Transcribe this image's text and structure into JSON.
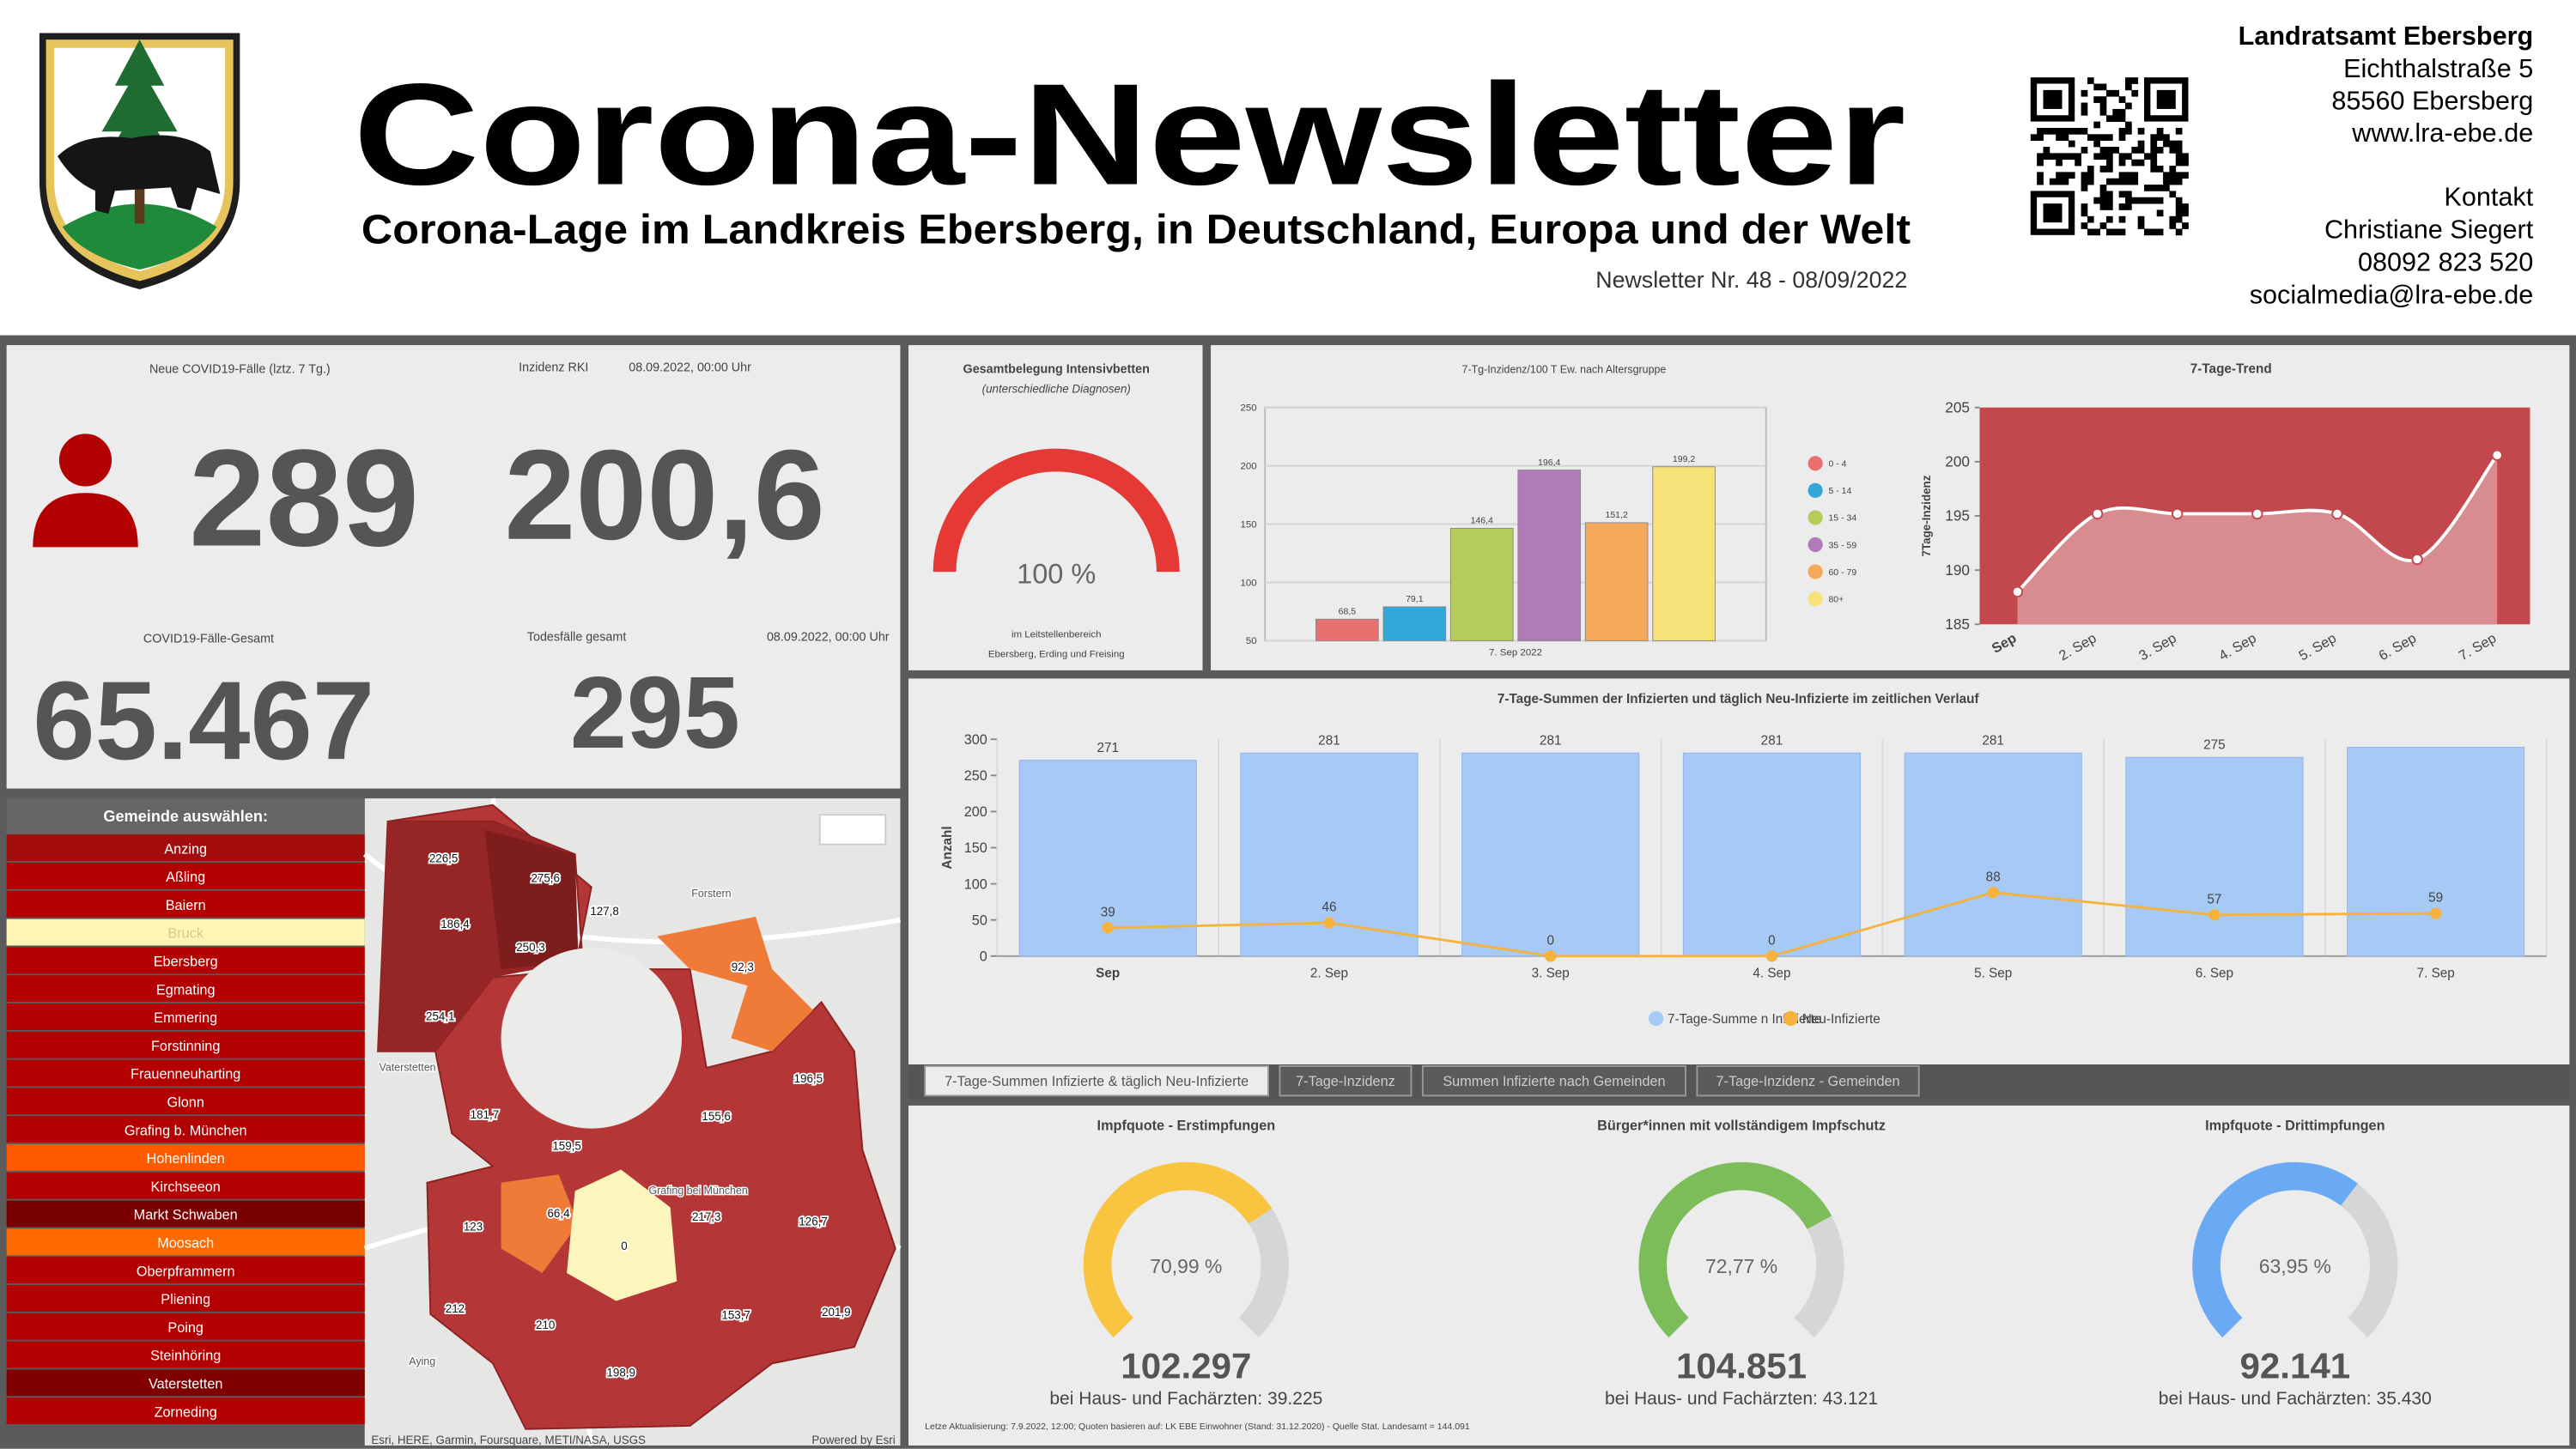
{
  "header": {
    "title": "Corona-Newsletter",
    "subtitle": "Corona-Lage im Landkreis Ebersberg, in Deutschland, Europa und der Welt",
    "issue": "Newsletter Nr. 48 - 08/09/2022"
  },
  "contact": {
    "office": "Landratsamt Ebersberg",
    "lines": [
      "Eichthalstraße 5",
      "85560 Ebersberg",
      "www.lra-ebe.de"
    ],
    "heading": "Kontakt",
    "contact_lines": [
      "Christiane Siegert",
      "08092 823 520",
      "socialmedia@lra-ebe.de"
    ]
  },
  "stats": {
    "new_cases": {
      "label": "Neue COVID19-Fälle (lztz. 7 Tg.)",
      "value": "289"
    },
    "incidence": {
      "label": "Inzidenz RKI",
      "date": "08.09.2022, 00:00 Uhr",
      "value": "200,6"
    },
    "total_cases": {
      "label": "COVID19-Fälle-Gesamt",
      "value": "65.467"
    },
    "deaths": {
      "label": "Todesfälle gesamt",
      "date": "08.09.2022, 00:00 Uhr",
      "value": "295"
    }
  },
  "municipalities": {
    "heading": "Gemeinde auswählen:",
    "items": [
      {
        "name": "Anzing",
        "color": "#a30d0d"
      },
      {
        "name": "Aßling",
        "color": "#b30000"
      },
      {
        "name": "Baiern",
        "color": "#b30000"
      },
      {
        "name": "Bruck",
        "color": "#fff5b5"
      },
      {
        "name": "Ebersberg",
        "color": "#b30000"
      },
      {
        "name": "Egmating",
        "color": "#b30000"
      },
      {
        "name": "Emmering",
        "color": "#b30000"
      },
      {
        "name": "Forstinning",
        "color": "#b30000"
      },
      {
        "name": "Frauenneuharting",
        "color": "#b30000"
      },
      {
        "name": "Glonn",
        "color": "#b30000"
      },
      {
        "name": "Grafing b. München",
        "color": "#b30000"
      },
      {
        "name": "Hohenlinden",
        "color": "#ff5a00"
      },
      {
        "name": "Kirchseeon",
        "color": "#b30000"
      },
      {
        "name": "Markt Schwaben",
        "color": "#7a0000"
      },
      {
        "name": "Moosach",
        "color": "#ff6a00"
      },
      {
        "name": "Oberpframmern",
        "color": "#b30000"
      },
      {
        "name": "Pliening",
        "color": "#b30000"
      },
      {
        "name": "Poing",
        "color": "#b30000"
      },
      {
        "name": "Steinhöring",
        "color": "#b30000"
      },
      {
        "name": "Vaterstetten",
        "color": "#800000"
      },
      {
        "name": "Zorneding",
        "color": "#b30000"
      }
    ]
  },
  "map": {
    "labels": [
      "226,5",
      "275,6",
      "186,4",
      "250,3",
      "127,8",
      "92,3",
      "254,1",
      "196,5",
      "181,7",
      "155,6",
      "159,5",
      "66,4",
      "0",
      "217,3",
      "123",
      "126,7",
      "212",
      "210",
      "153,7",
      "201,9",
      "198,9"
    ],
    "places": [
      "Forstern",
      "Vaterstetten",
      "Aying",
      "Grafing bei München"
    ],
    "attribution": "Esri, HERE, Garmin, Foursquare, METI/NASA, USGS",
    "powered": "Powered by Esri"
  },
  "chart_data": [
    {
      "type": "gauge",
      "title": "Gesamtbelegung Intensivbetten",
      "subtitle": "(unterschiedliche Diagnosen)",
      "value": 100,
      "value_label": "100 %",
      "ylim": [
        0,
        100
      ],
      "color": "#e53935",
      "notes": [
        "im Leitstellenbereich",
        "Ebersberg, Erding und Freising"
      ]
    },
    {
      "type": "bar",
      "title": "7-Tg-Inzidenz/100 T Ew. nach Altersgruppe",
      "categories": [
        "7. Sep 2022"
      ],
      "ylim": [
        50,
        250
      ],
      "yticks": [
        50,
        100,
        150,
        200,
        250
      ],
      "grid": true,
      "series": [
        {
          "name": "0 - 4",
          "color": "#e8716f",
          "values": [
            68.5
          ],
          "value_labels": [
            "68,5"
          ]
        },
        {
          "name": "5 - 14",
          "color": "#33a7d8",
          "values": [
            79.1
          ],
          "value_labels": [
            "79,1"
          ]
        },
        {
          "name": "15 - 34",
          "color": "#b6cc5a",
          "values": [
            146.4
          ],
          "value_labels": [
            "146,4"
          ]
        },
        {
          "name": "35 - 59",
          "color": "#b07bb8",
          "values": [
            196.4
          ],
          "value_labels": [
            "196,4"
          ]
        },
        {
          "name": "60 - 79",
          "color": "#f4a95a",
          "values": [
            151.2
          ],
          "value_labels": [
            "151,2"
          ]
        },
        {
          "name": "80+",
          "color": "#f7e27a",
          "values": [
            199.2
          ],
          "value_labels": [
            "199,2"
          ]
        }
      ]
    },
    {
      "type": "area",
      "title": "7-Tage-Trend",
      "y_label": "7Tage-Inzidenz",
      "categories": [
        "Sep",
        "2. Sep",
        "3. Sep",
        "4. Sep",
        "5. Sep",
        "6. Sep",
        "7. Sep"
      ],
      "values": [
        188,
        195.2,
        195.2,
        195.2,
        195.2,
        191,
        200.6
      ],
      "ylim": [
        185,
        205
      ],
      "yticks": [
        185,
        190,
        195,
        200,
        205
      ],
      "color": "#c2484d"
    },
    {
      "type": "combo",
      "title": "7-Tage-Summen der Infizierten und täglich Neu-Infizierte im zeitlichen Verlauf",
      "y_label": "Anzahl",
      "categories": [
        "Sep",
        "2. Sep",
        "3. Sep",
        "4. Sep",
        "5. Sep",
        "6. Sep",
        "7. Sep"
      ],
      "ylim": [
        0,
        300
      ],
      "yticks": [
        0,
        50,
        100,
        150,
        200,
        250,
        300
      ],
      "series": [
        {
          "name": "7-Tage-Summe n Infizierte",
          "kind": "bar",
          "color": "#a6c9f5",
          "values": [
            271,
            281,
            281,
            281,
            281,
            275,
            289
          ],
          "value_labels": [
            "271",
            "281",
            "281",
            "281",
            "281",
            "275",
            null
          ]
        },
        {
          "name": "Neu-Infizierte",
          "kind": "line",
          "color": "#f5b23d",
          "values": [
            39,
            46,
            0,
            0,
            88,
            57,
            59
          ]
        }
      ]
    },
    {
      "type": "gauge270",
      "title": "Impfquote - Erstimpfungen",
      "value": 70.99,
      "value_label": "70,99 %",
      "ylim": [
        0,
        100
      ],
      "color": "#f9c440",
      "count": "102.297",
      "note": "bei Haus- und Fachärzten: 39.225"
    },
    {
      "type": "gauge270",
      "title": "Bürger*innen mit vollständigem Impfschutz",
      "value": 72.77,
      "value_label": "72,77 %",
      "ylim": [
        0,
        100
      ],
      "color": "#7cbd5a",
      "count": "104.851",
      "note": "bei Haus- und Fachärzten: 43.121"
    },
    {
      "type": "gauge270",
      "title": "Impfquote - Drittimpfungen",
      "value": 63.95,
      "value_label": "63,95 %",
      "ylim": [
        0,
        100
      ],
      "color": "#6aaaf5",
      "count": "92.141",
      "note": "bei Haus- und Fachärzten: 35.430"
    }
  ],
  "tabs": [
    "7-Tage-Summen Infizierte & täglich Neu-Infizierte",
    "7-Tage-Inzidenz",
    "Summen Infizierte nach Gemeinden",
    "7-Tage-Inzidenz - Gemeinden"
  ],
  "footnote": "Letze Aktualisierung: 7.9.2022, 12:00; Quoten basieren auf: LK EBE Einwohner (Stand: 31.12.2020) - Quelle Stat. Landesamt = 144.091"
}
